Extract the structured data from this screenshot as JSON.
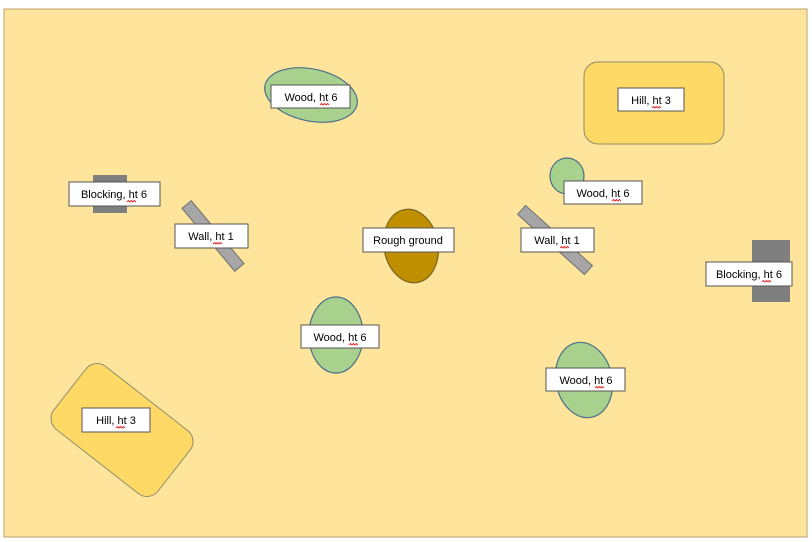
{
  "colors": {
    "background": "#ffe59b",
    "background_border": "#b7a26c",
    "hill_fill": "#ffd966",
    "hill_stroke": "#8c8c6c",
    "wood_fill": "#a9d18e",
    "wood_stroke": "#4a6e8a",
    "rough_fill": "#bf8f00",
    "rough_stroke": "#7a6420",
    "blocking_fill": "#7f7f7f",
    "wall_fill": "#a6a6a6",
    "wall_stroke": "#6f6f6f",
    "label_bg": "#ffffff",
    "spellcheck": "#e03030"
  },
  "terrain": [
    {
      "kind": "hill",
      "label": "Hill, ht 3"
    },
    {
      "kind": "hill",
      "label": "Hill, ht 3"
    },
    {
      "kind": "wood",
      "label": "Wood, ht 6"
    },
    {
      "kind": "wood",
      "label": "Wood, ht 6"
    },
    {
      "kind": "wood",
      "label": "Wood, ht 6"
    },
    {
      "kind": "wood",
      "label": "Wood, ht 6"
    },
    {
      "kind": "blocking",
      "label": "Blocking, ht 6"
    },
    {
      "kind": "blocking",
      "label": "Blocking, ht 6"
    },
    {
      "kind": "wall",
      "label": "Wall, ht 1"
    },
    {
      "kind": "wall",
      "label": "Wall, ht 1"
    },
    {
      "kind": "rough",
      "label": "Rough ground"
    }
  ]
}
